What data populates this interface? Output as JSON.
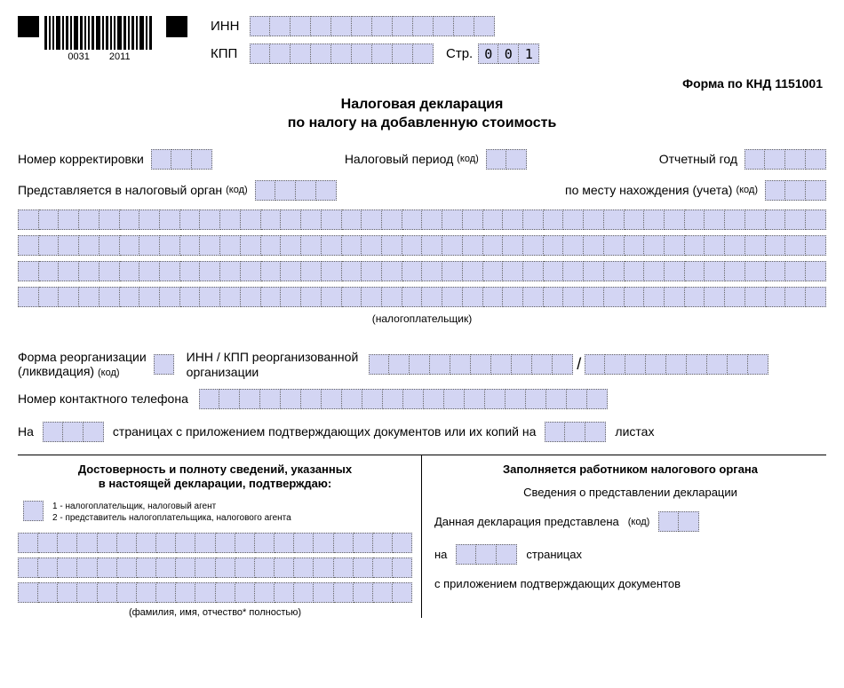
{
  "cell_color": "#d3d5f3",
  "barcode_nums": {
    "a": "0031",
    "b": "2011"
  },
  "inn": {
    "label": "ИНН",
    "cells": 12
  },
  "kpp": {
    "label": "КПП",
    "cells": 9
  },
  "page": {
    "label": "Стр.",
    "value": [
      "0",
      "0",
      "1"
    ]
  },
  "form_code": "Форма по КНД 1151001",
  "title_line1": "Налоговая декларация",
  "title_line2": "по налогу на добавленную стоимость",
  "row1": {
    "correction_label": "Номер корректировки",
    "correction_cells": 3,
    "period_label": "Налоговый период",
    "period_code": "(код)",
    "period_cells": 2,
    "year_label": "Отчетный год",
    "year_cells": 4
  },
  "row2": {
    "organ_label": "Представляется в налоговый орган",
    "organ_code": "(код)",
    "organ_cells": 4,
    "place_label": "по месту нахождения (учета)",
    "place_code": "(код)",
    "place_cells": 3
  },
  "taxpayer_lines": 4,
  "taxpayer_cells_per_line": 40,
  "taxpayer_sublabel": "(налогоплательщик)",
  "reorg": {
    "left_line1": "Форма реорганизации",
    "left_line2": "(ликвидация)",
    "left_code": "(код)",
    "form_cells": 1,
    "right_line1": "ИНН / КПП реорганизованной",
    "right_line2": "организации",
    "inn_cells": 10,
    "kpp_cells": 9
  },
  "phone": {
    "label": "Номер контактного телефона",
    "cells": 20
  },
  "pages": {
    "prefix": "На",
    "cells": 3,
    "mid": "страницах с приложением подтверждающих документов или их копий на",
    "suffix_cells": 3,
    "suffix": "листах"
  },
  "left_col": {
    "title_line1": "Достоверность и полноту сведений, указанных",
    "title_line2": "в настоящей декларации, подтверждаю:",
    "opt1": "1 - налогоплательщик, налоговый агент",
    "opt2": "2 - представитель налогоплательщика, налогового агента",
    "fio_lines": 3,
    "fio_cells": 20,
    "fio_label": "(фамилия, имя, отчество*   полностью)"
  },
  "right_col": {
    "title": "Заполняется работником налогового органа",
    "sub": "Сведения о представлении декларации",
    "r1_label": "Данная декларация представлена",
    "r1_code": "(код)",
    "r1_cells": 2,
    "r2_prefix": "на",
    "r2_cells": 3,
    "r2_suffix": "страницах",
    "r3": "с приложением подтверждающих документов"
  }
}
